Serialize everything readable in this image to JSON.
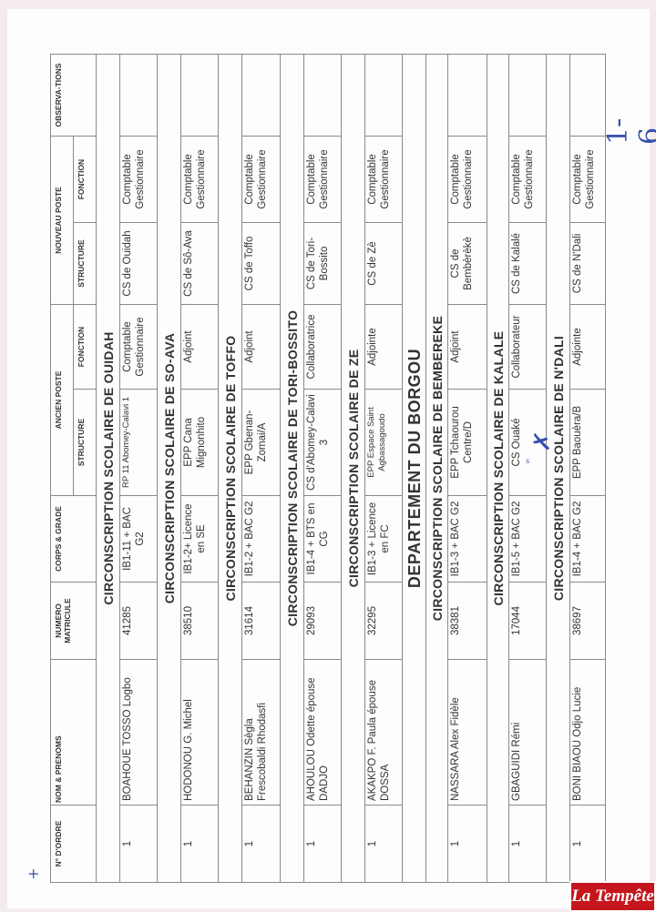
{
  "headers": {
    "ordre": "N° D'ORDRE",
    "nom": "NOM & PRENOMS",
    "matricule": "NUMERO MATRICULE",
    "corps": "CORPS & GRADE",
    "ancien": "ANCIEN POSTE",
    "nouveau": "NOUVEAU POSTE",
    "structure": "STRUCTURE",
    "fonction": "FONCTION",
    "observations": "OBSERVA-TIONS"
  },
  "sections": [
    {
      "title": "CIRCONSCRIPTION SCOLAIRE DE OUIDAH",
      "row": {
        "ordre": "1",
        "nom": "BOAHOUE TOSSO Logbo",
        "matricule": "41285",
        "corps": "IB1-11 + BAC G2",
        "ancien_structure": "RP 11 Abomey-Calavi 1",
        "ancien_fonction": "Comptable Gestionnaire",
        "nouveau_structure": "CS de Ouidah",
        "nouveau_fonction": "Comptable Gestionnaire"
      }
    },
    {
      "title": "CIRCONSCRIPTION SCOLAIRE DE SO-AVA",
      "row": {
        "ordre": "1",
        "nom": "HODONOU G. Michel",
        "matricule": "38510",
        "corps": "IB1-2+ Licence en SE",
        "ancien_structure": "EPP Cana Mignonhito",
        "ancien_fonction": "Adjoint",
        "nouveau_structure": "CS de Sô-Ava",
        "nouveau_fonction": "Comptable Gestionnaire"
      }
    },
    {
      "title": "CIRCONSCRIPTION SCOLAIRE DE TOFFO",
      "row": {
        "ordre": "1",
        "nom": "BEHANZIN Sègla Frescobaldi Rhodasfi",
        "matricule": "31614",
        "corps": "IB1-2 + BAC G2",
        "ancien_structure": "EPP Gbenan-Zomai/A",
        "ancien_fonction": "Adjoint",
        "nouveau_structure": "CS de Toffo",
        "nouveau_fonction": "Comptable Gestionnaire"
      }
    },
    {
      "title": "CIRCONSCRIPTION SCOLAIRE DE TORI-BOSSITO",
      "row": {
        "ordre": "1",
        "nom": "AHOULOU Odette épouse DADJO",
        "matricule": "29093",
        "corps": "IB1-4 + BTS en CG",
        "ancien_structure": "CS d'Abomey-Calavi 3",
        "ancien_fonction": "Collaboratrice",
        "nouveau_structure": "CS de Tori-Bossito",
        "nouveau_fonction": "Comptable Gestionnaire"
      }
    },
    {
      "title": "CIRCONSCRIPTION SCOLAIRE DE ZE",
      "row": {
        "ordre": "1",
        "nom": "AKAKPO F. Paula épouse DOSSA",
        "matricule": "32295",
        "corps": "IB1-3 + Licence en FC",
        "ancien_structure": "EPP Espace Saint Agbassagoudo",
        "ancien_fonction": "Adjointe",
        "nouveau_structure": "CS de Zè",
        "nouveau_fonction": "Comptable Gestionnaire"
      }
    }
  ],
  "department": "DEPARTEMENT DU BORGOU",
  "sections2": [
    {
      "title": "CIRCONSCRIPTION SCOLAIRE DE BEMBEREKE",
      "row": {
        "ordre": "1",
        "nom": "NASSARA Alex Fidèle",
        "matricule": "38381",
        "corps": "IB1-3 + BAC G2",
        "ancien_structure": "EPP Tchaourou Centre/D",
        "ancien_fonction": "Adjoint",
        "nouveau_structure": "CS de Bembèrèkè",
        "nouveau_fonction": "Comptable Gestionnaire"
      }
    },
    {
      "title": "CIRCONSCRIPTION SCOLAIRE DE KALALE",
      "row": {
        "ordre": "1",
        "nom": "GBAGUIDI Rémi",
        "matricule": "17044",
        "corps": "IB1-5 + BAC G2",
        "ancien_structure": "CS Ouaké",
        "ancien_fonction": "Collaborateur",
        "nouveau_structure": "CS de Kalalé",
        "nouveau_fonction": "Comptable Gestionnaire"
      }
    },
    {
      "title": "CIRCONSCRIPTION SCOLAIRE DE N'DALI",
      "row": {
        "ordre": "1",
        "nom": "BONI BIAOU Odjo Lucie",
        "matricule": "38697",
        "corps": "IB1-4 + BAC G2",
        "ancien_structure": "EPP Baouèra/B",
        "ancien_fonction": "Adjointe",
        "nouveau_structure": "CS de N'Dali",
        "nouveau_fonction": "Comptable Gestionnaire"
      }
    }
  ],
  "handwritten": {
    "page_mark": "1-6",
    "initials": "s"
  },
  "logo": "La Tempête",
  "colors": {
    "logo_red": "#c4161c",
    "ink_blue": "#3a4fb0"
  }
}
